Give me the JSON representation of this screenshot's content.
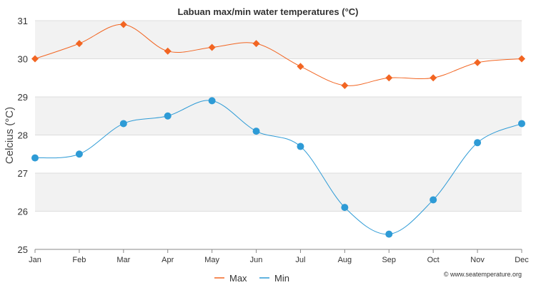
{
  "chart_data": {
    "type": "line",
    "title": "Labuan max/min water temperatures (°C)",
    "ylabel": "Celcius (°C)",
    "xlabel": "",
    "categories": [
      "Jan",
      "Feb",
      "Mar",
      "Apr",
      "May",
      "Jun",
      "Jul",
      "Aug",
      "Sep",
      "Oct",
      "Nov",
      "Dec"
    ],
    "ylim": [
      25,
      31
    ],
    "yticks": [
      "25",
      "26",
      "27",
      "28",
      "29",
      "30",
      "31"
    ],
    "grid": true,
    "legend_position": "bottom",
    "series": [
      {
        "name": "Max",
        "color": "#f26522",
        "marker": "diamond",
        "values": [
          30.0,
          30.4,
          30.9,
          30.2,
          30.3,
          30.4,
          29.8,
          29.3,
          29.5,
          29.5,
          29.9,
          30.0
        ]
      },
      {
        "name": "Min",
        "color": "#2e9bd6",
        "marker": "circle",
        "values": [
          27.4,
          27.5,
          28.3,
          28.5,
          28.9,
          28.1,
          27.7,
          26.1,
          25.4,
          26.3,
          27.8,
          28.3
        ]
      }
    ],
    "band_colors": [
      "#f2f2f2",
      "#ffffff"
    ],
    "credit": "© www.seatemperature.org"
  }
}
